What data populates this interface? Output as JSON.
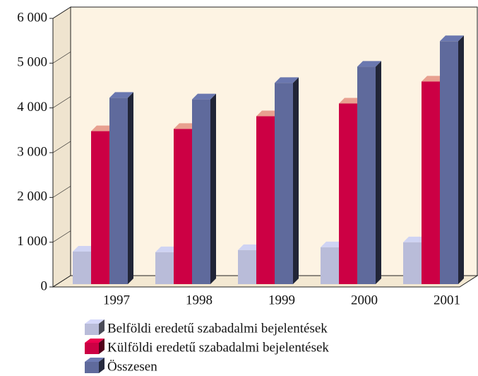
{
  "chart_data": {
    "type": "bar3d",
    "categories": [
      "1997",
      "1998",
      "1999",
      "2000",
      "2001"
    ],
    "series": [
      {
        "name": "Belföldi eredetű szabadalmi bejelentések",
        "color": "#b9bcd9",
        "values": [
          790,
          775,
          823,
          886,
          997
        ]
      },
      {
        "name": "Külföldi eredetű szabadalmi bejelentések",
        "color": "#cc0044",
        "values": [
          3480,
          3530,
          3813,
          4098,
          4589
        ]
      },
      {
        "name": "Összesen",
        "color": "#5f6a9c",
        "values": [
          4225,
          4190,
          4557,
          4921,
          5490
        ]
      }
    ],
    "ylim": [
      0,
      6000
    ],
    "yticks": [
      {
        "value": 0,
        "label": "0"
      },
      {
        "value": 1000,
        "label": "1 000"
      },
      {
        "value": 2000,
        "label": "2 000"
      },
      {
        "value": 3000,
        "label": "3 000"
      },
      {
        "value": 4000,
        "label": "4 000"
      },
      {
        "value": 5000,
        "label": "5 000"
      },
      {
        "value": 6000,
        "label": "6 000"
      }
    ]
  }
}
